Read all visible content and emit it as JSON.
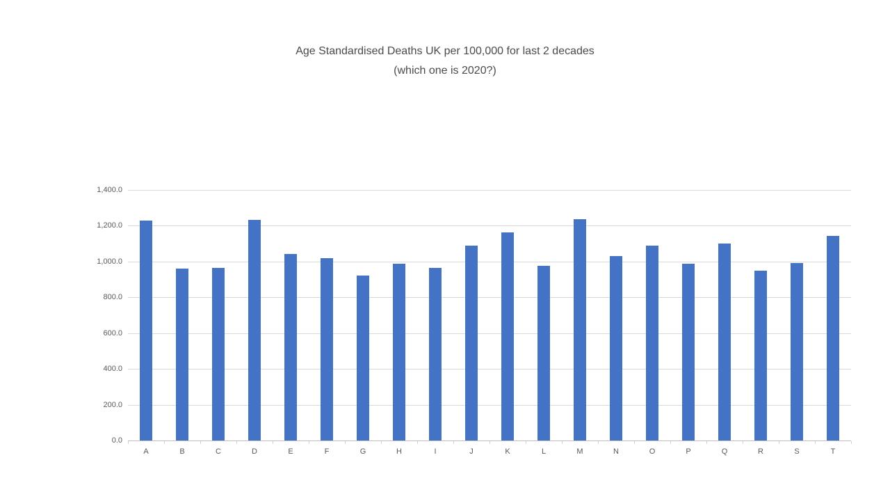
{
  "page": {
    "background_color": "#ffffff"
  },
  "chart_data": {
    "type": "bar",
    "title": "Age Standardised Deaths UK per 100,000 for last 2 decades",
    "subtitle": "(which one is 2020?)",
    "categories": [
      "A",
      "B",
      "C",
      "D",
      "E",
      "F",
      "G",
      "H",
      "I",
      "J",
      "K",
      "L",
      "M",
      "N",
      "O",
      "P",
      "Q",
      "R",
      "S",
      "T"
    ],
    "values": [
      1229,
      962,
      963,
      1233,
      1043,
      1018,
      923,
      987,
      965,
      1090,
      1163,
      977,
      1238,
      1031,
      1089,
      987,
      1102,
      950,
      992,
      1144
    ],
    "xlabel": "",
    "ylabel": "",
    "ylim": [
      0,
      1400
    ],
    "y_ticks": [
      {
        "value": 0,
        "label": "0.0"
      },
      {
        "value": 200,
        "label": "200.0"
      },
      {
        "value": 400,
        "label": "400.0"
      },
      {
        "value": 600,
        "label": "600.0"
      },
      {
        "value": 800,
        "label": "800.0"
      },
      {
        "value": 1000,
        "label": "1,000.0"
      },
      {
        "value": 1200,
        "label": "1,200.0"
      },
      {
        "value": 1400,
        "label": "1,400.0"
      }
    ],
    "grid": true,
    "legend_position": "none",
    "bar_color": "#4472C4",
    "gridline_color": "#D9D9D9",
    "axis_line_color": "#BFBFBF",
    "title_color": "#4A4A4A",
    "tick_label_color": "#595959"
  }
}
